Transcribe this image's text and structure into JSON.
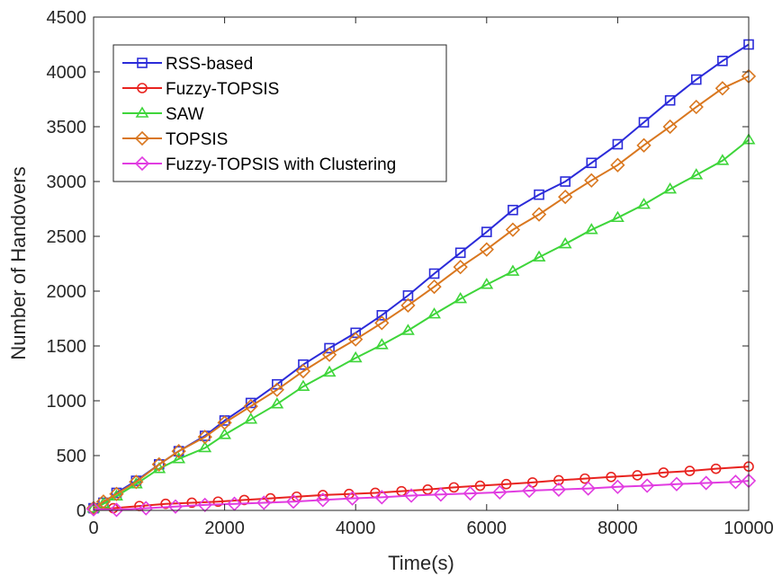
{
  "chart_data": {
    "type": "line",
    "title": "",
    "xlabel": "Time(s)",
    "ylabel": "Number of Handovers",
    "xlim": [
      0,
      10000
    ],
    "ylim": [
      0,
      4500
    ],
    "xticks": [
      "0",
      "2000",
      "4000",
      "6000",
      "8000",
      "10000"
    ],
    "yticks": [
      "0",
      "500",
      "1000",
      "1500",
      "2000",
      "2500",
      "3000",
      "3500",
      "4000",
      "4500"
    ],
    "grid": false,
    "legend_position": "top-left",
    "series": [
      {
        "name": "RSS-based",
        "color": "#2b2bd9",
        "marker": "square",
        "x": [
          0,
          150,
          350,
          650,
          1000,
          1300,
          1700,
          2000,
          2400,
          2800,
          3200,
          3600,
          4000,
          4400,
          4800,
          5200,
          5600,
          6000,
          6400,
          6800,
          7200,
          7600,
          8000,
          8400,
          8800,
          9200,
          9600,
          10000
        ],
        "y": [
          20,
          70,
          160,
          270,
          420,
          540,
          680,
          820,
          980,
          1150,
          1330,
          1480,
          1620,
          1780,
          1960,
          2160,
          2350,
          2540,
          2740,
          2880,
          3000,
          3170,
          3340,
          3540,
          3740,
          3930,
          4100,
          4250
        ]
      },
      {
        "name": "Fuzzy-TOPSIS",
        "color": "#e8231f",
        "marker": "circle",
        "x": [
          0,
          300,
          700,
          1100,
          1500,
          1900,
          2300,
          2700,
          3100,
          3500,
          3900,
          4300,
          4700,
          5100,
          5500,
          5900,
          6300,
          6700,
          7100,
          7500,
          7900,
          8300,
          8700,
          9100,
          9500,
          10000
        ],
        "y": [
          10,
          20,
          40,
          60,
          70,
          80,
          95,
          110,
          125,
          140,
          150,
          160,
          175,
          190,
          210,
          225,
          240,
          255,
          275,
          290,
          305,
          320,
          345,
          360,
          380,
          400
        ]
      },
      {
        "name": "SAW",
        "color": "#3ed53a",
        "marker": "triangle",
        "x": [
          0,
          150,
          350,
          650,
          1000,
          1300,
          1700,
          2000,
          2400,
          2800,
          3200,
          3600,
          4000,
          4400,
          4800,
          5200,
          5600,
          6000,
          6400,
          6800,
          7200,
          7600,
          8000,
          8400,
          8800,
          9200,
          9600,
          10000
        ],
        "y": [
          20,
          60,
          130,
          240,
          380,
          470,
          570,
          690,
          830,
          970,
          1130,
          1260,
          1390,
          1510,
          1640,
          1790,
          1930,
          2060,
          2180,
          2310,
          2430,
          2560,
          2670,
          2790,
          2930,
          3060,
          3190,
          3380
        ]
      },
      {
        "name": "TOPSIS",
        "color": "#d9771f",
        "marker": "diamond",
        "x": [
          0,
          150,
          350,
          650,
          1000,
          1300,
          1700,
          2000,
          2400,
          2800,
          3200,
          3600,
          4000,
          4400,
          4800,
          5200,
          5600,
          6000,
          6400,
          6800,
          7200,
          7600,
          8000,
          8400,
          8800,
          9200,
          9600,
          10000
        ],
        "y": [
          20,
          80,
          150,
          260,
          420,
          540,
          670,
          800,
          950,
          1100,
          1270,
          1420,
          1560,
          1710,
          1870,
          2040,
          2220,
          2380,
          2560,
          2700,
          2860,
          3010,
          3150,
          3330,
          3500,
          3680,
          3850,
          3960
        ]
      },
      {
        "name": "Fuzzy-TOPSIS with Clustering",
        "color": "#e13ce1",
        "marker": "diamond",
        "x": [
          0,
          350,
          800,
          1250,
          1700,
          2150,
          2600,
          3050,
          3500,
          3950,
          4400,
          4850,
          5300,
          5750,
          6200,
          6650,
          7100,
          7550,
          8000,
          8450,
          8900,
          9350,
          9800,
          10000
        ],
        "y": [
          10,
          5,
          20,
          35,
          50,
          60,
          70,
          80,
          95,
          110,
          120,
          135,
          145,
          155,
          165,
          180,
          190,
          200,
          215,
          225,
          240,
          250,
          260,
          270
        ]
      }
    ]
  }
}
